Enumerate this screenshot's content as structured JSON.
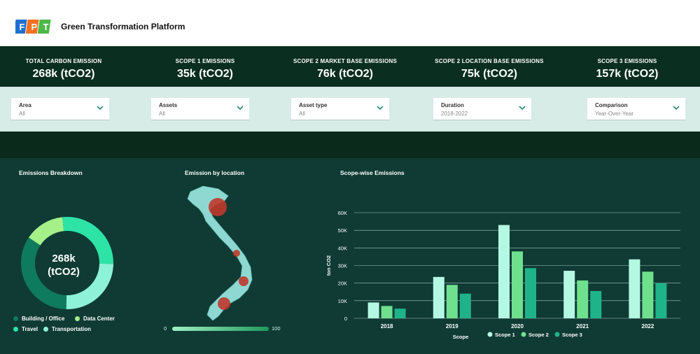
{
  "header": {
    "logo_text": "FPT",
    "title": "Green Transformation Platform"
  },
  "kpis": [
    {
      "label": "TOTAL CARBON EMISSION",
      "value": "268k (tCO2)"
    },
    {
      "label": "SCOPE 1 EMISSIONS",
      "value": "35k (tCO2)"
    },
    {
      "label": "SCOPE 2 MARKET BASE EMISSIONS",
      "value": "76k (tCO2)"
    },
    {
      "label": "SCOPE 2 LOCATION BASE EMISSIONS",
      "value": "75k (tCO2)"
    },
    {
      "label": "SCOPE 3 EMISSIONS",
      "value": "157k (tCO2)"
    }
  ],
  "filters": [
    {
      "label": "Area",
      "value": "All"
    },
    {
      "label": "Assets",
      "value": "All"
    },
    {
      "label": "Asset type",
      "value": "All"
    },
    {
      "label": "Duration",
      "value": "2018-2022"
    },
    {
      "label": "Comparison",
      "value": "Year-Over-Year"
    }
  ],
  "breakdown": {
    "title": "Emissions Breakdown",
    "center_value": "268k",
    "center_unit": "(tCO2)",
    "segments": [
      {
        "name": "Building / Office",
        "share": 0.34,
        "color": "#0e7a5e"
      },
      {
        "name": "Data Center",
        "share": 0.14,
        "color": "#a6f08a"
      },
      {
        "name": "Travel",
        "share": 0.27,
        "color": "#2ee3a6"
      },
      {
        "name": "Transportation",
        "share": 0.25,
        "color": "#8ef2d8"
      }
    ]
  },
  "location": {
    "title": "Emission by location",
    "scale_min": "0",
    "scale_max": "100"
  },
  "chart_data": {
    "type": "bar",
    "title": "Scope-wise Emissions",
    "xlabel": "Scope",
    "ylabel": "ton CO2",
    "categories": [
      "2018",
      "2019",
      "2020",
      "2021",
      "2022"
    ],
    "y_ticks": [
      "0",
      "10K",
      "20K",
      "30K",
      "40K",
      "50K",
      "60K"
    ],
    "ylim": [
      0,
      60000
    ],
    "grid": true,
    "legend_position": "bottom",
    "series": [
      {
        "name": "Scope 1",
        "color": "#b4f7e2",
        "values": [
          9000,
          23500,
          53000,
          27000,
          33500
        ]
      },
      {
        "name": "Scope 2",
        "color": "#6fe08d",
        "values": [
          7000,
          19000,
          38000,
          21500,
          26500
        ]
      },
      {
        "name": "Scope 3",
        "color": "#1fb38a",
        "values": [
          5500,
          14000,
          28500,
          15500,
          20000
        ]
      }
    ]
  }
}
